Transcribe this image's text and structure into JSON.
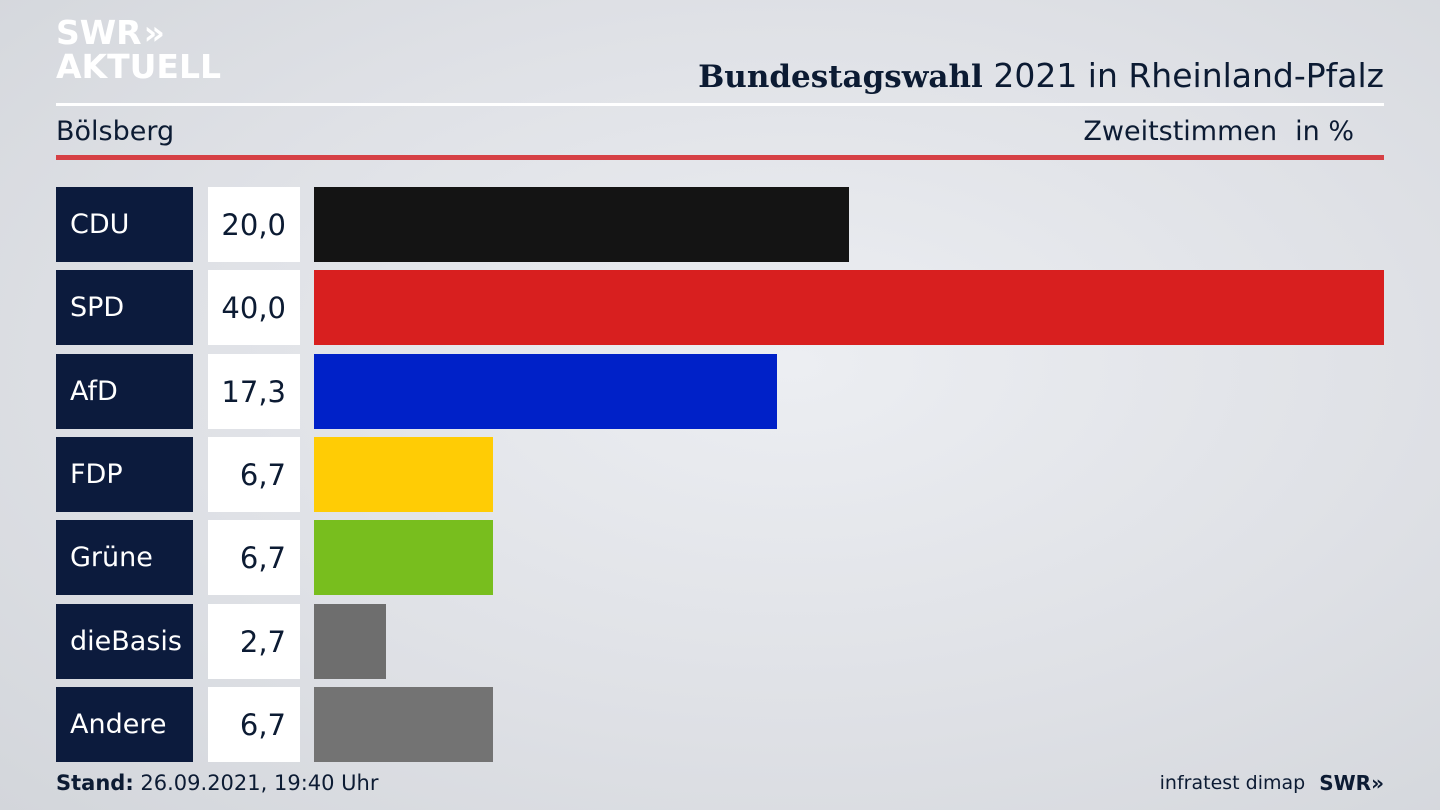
{
  "logo": {
    "line1": "SWR",
    "line2": "AKTUELL",
    "chevrons": "»"
  },
  "header": {
    "title_bold": "Bundestagswahl",
    "title_rest": " 2021 in Rheinland-Pfalz",
    "place": "Bölsberg",
    "measure": "Zweitstimmen",
    "unit": "in %"
  },
  "colors": {
    "header_rule": "#d64045",
    "label_bg": "#0c1b3d"
  },
  "chart_data": {
    "type": "bar",
    "orientation": "horizontal",
    "categories": [
      "CDU",
      "SPD",
      "AfD",
      "FDP",
      "Grüne",
      "dieBasis",
      "Andere"
    ],
    "values": [
      20.0,
      40.0,
      17.3,
      6.7,
      6.7,
      2.7,
      6.7
    ],
    "value_labels": [
      "20,0",
      "40,0",
      "17,3",
      "6,7",
      "6,7",
      "2,7",
      "6,7"
    ],
    "colors": [
      "#141414",
      "#d81f1f",
      "#0021c8",
      "#ffcc05",
      "#78be1e",
      "#6e6e6e",
      "#737373"
    ],
    "xlim": [
      0,
      40
    ],
    "grid": false,
    "legend": "none"
  },
  "footer": {
    "stand_label": "Stand:",
    "stand_value": " 26.09.2021, 19:40 Uhr",
    "source": "infratest dimap",
    "brand": "SWR»"
  }
}
